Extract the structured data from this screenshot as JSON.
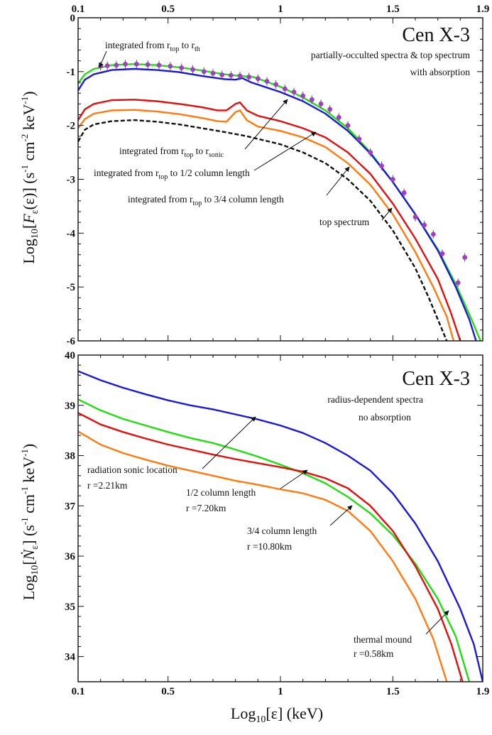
{
  "chart_data": [
    {
      "type": "line",
      "panel": "top",
      "title": "Cen X-3",
      "subtitle_lines": [
        "partially-occulted spectra & top spectrum",
        "with absorption"
      ],
      "xlabel": "",
      "ylabel": "Log10[Fε(ε)] (s-1 cm-2 keV-1)",
      "xlim": [
        0.1,
        1.9
      ],
      "ylim": [
        -6,
        0
      ],
      "top_x_ticks": [
        "0.1",
        "0.5",
        "1",
        "1.5",
        "1.9"
      ],
      "x_ticks": [
        0.1,
        0.5,
        1,
        1.5,
        1.9
      ],
      "y_ticks": [
        "0",
        "-1",
        "-2",
        "-3",
        "-4",
        "-5",
        "-6"
      ],
      "y_tick_values": [
        0,
        -1,
        -2,
        -3,
        -4,
        -5,
        -6
      ],
      "annotations": [
        {
          "text": "integrated from r",
          "sub1": "top",
          "mid": " to r",
          "sub2": "th"
        },
        {
          "text": "integrated from r",
          "sub1": "top",
          "mid": " to r",
          "sub2": "sonic"
        },
        {
          "text": "integrated from r",
          "sub1": "top",
          "mid": " to 1/2 column length",
          "sub2": ""
        },
        {
          "text": "integrated from r",
          "sub1": "top",
          "mid": " to 3/4 column length",
          "sub2": ""
        },
        {
          "text": "top spectrum",
          "sub1": "",
          "mid": "",
          "sub2": ""
        }
      ],
      "series": [
        {
          "color": "#22dd11",
          "style": "solid",
          "points": [
            [
              0.1,
              -1.22
            ],
            [
              0.13,
              -1.05
            ],
            [
              0.17,
              -0.95
            ],
            [
              0.25,
              -0.88
            ],
            [
              0.35,
              -0.86
            ],
            [
              0.45,
              -0.88
            ],
            [
              0.55,
              -0.92
            ],
            [
              0.65,
              -0.98
            ],
            [
              0.75,
              -1.05
            ],
            [
              0.82,
              -1.08
            ],
            [
              0.88,
              -1.1
            ],
            [
              1.0,
              -1.28
            ],
            [
              1.1,
              -1.48
            ],
            [
              1.2,
              -1.72
            ],
            [
              1.3,
              -2.05
            ],
            [
              1.4,
              -2.5
            ],
            [
              1.5,
              -3.05
            ],
            [
              1.6,
              -3.65
            ],
            [
              1.7,
              -4.3
            ],
            [
              1.78,
              -4.95
            ],
            [
              1.85,
              -5.6
            ],
            [
              1.89,
              -6.0
            ]
          ]
        },
        {
          "color": "#1a1ad6",
          "style": "solid",
          "points": [
            [
              0.1,
              -1.35
            ],
            [
              0.13,
              -1.15
            ],
            [
              0.17,
              -1.05
            ],
            [
              0.25,
              -0.97
            ],
            [
              0.35,
              -0.95
            ],
            [
              0.45,
              -0.97
            ],
            [
              0.55,
              -1.01
            ],
            [
              0.65,
              -1.08
            ],
            [
              0.75,
              -1.14
            ],
            [
              0.8,
              -1.15
            ],
            [
              0.83,
              -1.12
            ],
            [
              0.87,
              -1.2
            ],
            [
              1.0,
              -1.38
            ],
            [
              1.1,
              -1.55
            ],
            [
              1.2,
              -1.78
            ],
            [
              1.3,
              -2.1
            ],
            [
              1.4,
              -2.52
            ],
            [
              1.5,
              -3.05
            ],
            [
              1.6,
              -3.65
            ],
            [
              1.7,
              -4.32
            ],
            [
              1.78,
              -5.0
            ],
            [
              1.84,
              -5.6
            ],
            [
              1.87,
              -6.0
            ]
          ]
        },
        {
          "color": "#e01010",
          "style": "solid",
          "points": [
            [
              0.1,
              -1.9
            ],
            [
              0.13,
              -1.7
            ],
            [
              0.17,
              -1.6
            ],
            [
              0.25,
              -1.53
            ],
            [
              0.35,
              -1.52
            ],
            [
              0.45,
              -1.55
            ],
            [
              0.55,
              -1.6
            ],
            [
              0.65,
              -1.66
            ],
            [
              0.72,
              -1.72
            ],
            [
              0.76,
              -1.72
            ],
            [
              0.8,
              -1.6
            ],
            [
              0.82,
              -1.57
            ],
            [
              0.85,
              -1.72
            ],
            [
              0.9,
              -1.82
            ],
            [
              1.0,
              -1.92
            ],
            [
              1.1,
              -2.05
            ],
            [
              1.2,
              -2.22
            ],
            [
              1.3,
              -2.5
            ],
            [
              1.4,
              -2.9
            ],
            [
              1.5,
              -3.45
            ],
            [
              1.6,
              -4.1
            ],
            [
              1.7,
              -4.85
            ],
            [
              1.76,
              -5.5
            ],
            [
              1.8,
              -6.0
            ]
          ]
        },
        {
          "color": "#ff7a10",
          "style": "solid",
          "points": [
            [
              0.1,
              -2.05
            ],
            [
              0.13,
              -1.88
            ],
            [
              0.17,
              -1.78
            ],
            [
              0.25,
              -1.72
            ],
            [
              0.35,
              -1.71
            ],
            [
              0.45,
              -1.74
            ],
            [
              0.55,
              -1.79
            ],
            [
              0.65,
              -1.86
            ],
            [
              0.72,
              -1.92
            ],
            [
              0.76,
              -1.93
            ],
            [
              0.8,
              -1.75
            ],
            [
              0.82,
              -1.72
            ],
            [
              0.85,
              -1.9
            ],
            [
              0.9,
              -2.02
            ],
            [
              1.0,
              -2.1
            ],
            [
              1.1,
              -2.22
            ],
            [
              1.2,
              -2.4
            ],
            [
              1.3,
              -2.7
            ],
            [
              1.4,
              -3.1
            ],
            [
              1.5,
              -3.65
            ],
            [
              1.6,
              -4.35
            ],
            [
              1.68,
              -5.0
            ],
            [
              1.74,
              -5.55
            ],
            [
              1.77,
              -6.0
            ]
          ]
        },
        {
          "color": "#111111",
          "style": "dashed",
          "points": [
            [
              0.1,
              -2.3
            ],
            [
              0.13,
              -2.08
            ],
            [
              0.17,
              -1.98
            ],
            [
              0.25,
              -1.92
            ],
            [
              0.35,
              -1.9
            ],
            [
              0.45,
              -1.93
            ],
            [
              0.55,
              -1.98
            ],
            [
              0.65,
              -2.05
            ],
            [
              0.75,
              -2.12
            ],
            [
              0.85,
              -2.2
            ],
            [
              1.0,
              -2.35
            ],
            [
              1.1,
              -2.5
            ],
            [
              1.2,
              -2.7
            ],
            [
              1.3,
              -3.0
            ],
            [
              1.4,
              -3.4
            ],
            [
              1.5,
              -3.95
            ],
            [
              1.6,
              -4.65
            ],
            [
              1.66,
              -5.2
            ],
            [
              1.71,
              -5.7
            ],
            [
              1.74,
              -6.0
            ]
          ]
        }
      ],
      "data_points": {
        "color": "#a040c0",
        "points": [
          [
            0.2,
            -0.9
          ],
          [
            0.23,
            -0.89
          ],
          [
            0.27,
            -0.88
          ],
          [
            0.31,
            -0.86
          ],
          [
            0.36,
            -0.86
          ],
          [
            0.41,
            -0.87
          ],
          [
            0.46,
            -0.88
          ],
          [
            0.51,
            -0.9
          ],
          [
            0.56,
            -0.93
          ],
          [
            0.61,
            -0.96
          ],
          [
            0.66,
            -1.0
          ],
          [
            0.7,
            -1.03
          ],
          [
            0.74,
            -1.06
          ],
          [
            0.78,
            -1.07
          ],
          [
            0.82,
            -1.08
          ],
          [
            0.86,
            -1.1
          ],
          [
            0.9,
            -1.13
          ],
          [
            0.94,
            -1.18
          ],
          [
            0.98,
            -1.24
          ],
          [
            1.02,
            -1.32
          ],
          [
            1.06,
            -1.38
          ],
          [
            1.1,
            -1.45
          ],
          [
            1.14,
            -1.52
          ],
          [
            1.18,
            -1.6
          ],
          [
            1.22,
            -1.7
          ],
          [
            1.26,
            -1.85
          ],
          [
            1.3,
            -2.0
          ],
          [
            1.35,
            -2.25
          ],
          [
            1.4,
            -2.5
          ],
          [
            1.45,
            -2.75
          ],
          [
            1.5,
            -3.0
          ],
          [
            1.55,
            -3.25
          ],
          [
            1.6,
            -3.7
          ],
          [
            1.64,
            -3.85
          ],
          [
            1.68,
            -4.02
          ],
          [
            1.72,
            -4.38
          ],
          [
            1.79,
            -4.92
          ],
          [
            1.82,
            -4.45
          ]
        ]
      }
    },
    {
      "type": "line",
      "panel": "bottom",
      "title": "Cen X-3",
      "subtitle_lines": [
        "radius-dependent spectra",
        "no absorption"
      ],
      "xlabel": "Log10[ε] (keV)",
      "ylabel": "Log10[Ṅε] (s-1 cm-1 keV-1)",
      "xlim": [
        0.1,
        1.9
      ],
      "ylim": [
        33.5,
        40
      ],
      "x_ticks": [
        "0.1",
        "0.5",
        "1",
        "1.5",
        "1.9"
      ],
      "x_tick_values": [
        0.1,
        0.5,
        1,
        1.5,
        1.9
      ],
      "y_ticks": [
        "40",
        "39",
        "38",
        "37",
        "36",
        "35",
        "34"
      ],
      "y_tick_values": [
        40,
        39,
        38,
        37,
        36,
        35,
        34
      ],
      "annotations": [
        {
          "line1": "radiation sonic location",
          "line2": "r =2.21km"
        },
        {
          "line1": "1/2 column length",
          "line2": "r =7.20km"
        },
        {
          "line1": "3/4 column length",
          "line2": "r =10.80km"
        },
        {
          "line1": "thermal mound",
          "line2": "r =0.58km"
        }
      ],
      "series": [
        {
          "color": "#1a1ad6",
          "points": [
            [
              0.1,
              39.68
            ],
            [
              0.2,
              39.5
            ],
            [
              0.3,
              39.35
            ],
            [
              0.4,
              39.22
            ],
            [
              0.5,
              39.1
            ],
            [
              0.6,
              39.0
            ],
            [
              0.7,
              38.92
            ],
            [
              0.8,
              38.82
            ],
            [
              0.9,
              38.72
            ],
            [
              1.0,
              38.6
            ],
            [
              1.1,
              38.45
            ],
            [
              1.2,
              38.25
            ],
            [
              1.3,
              38.0
            ],
            [
              1.4,
              37.7
            ],
            [
              1.5,
              37.25
            ],
            [
              1.6,
              36.65
            ],
            [
              1.7,
              35.9
            ],
            [
              1.8,
              34.95
            ],
            [
              1.86,
              34.25
            ],
            [
              1.9,
              33.5
            ]
          ]
        },
        {
          "color": "#22dd11",
          "points": [
            [
              0.1,
              39.12
            ],
            [
              0.2,
              38.9
            ],
            [
              0.3,
              38.73
            ],
            [
              0.4,
              38.6
            ],
            [
              0.5,
              38.47
            ],
            [
              0.6,
              38.35
            ],
            [
              0.7,
              38.25
            ],
            [
              0.8,
              38.12
            ],
            [
              0.9,
              37.98
            ],
            [
              1.0,
              37.82
            ],
            [
              1.1,
              37.65
            ],
            [
              1.2,
              37.45
            ],
            [
              1.3,
              37.18
            ],
            [
              1.4,
              36.85
            ],
            [
              1.5,
              36.42
            ],
            [
              1.6,
              35.85
            ],
            [
              1.7,
              35.15
            ],
            [
              1.78,
              34.4
            ],
            [
              1.84,
              33.5
            ]
          ]
        },
        {
          "color": "#e01010",
          "points": [
            [
              0.1,
              38.85
            ],
            [
              0.2,
              38.62
            ],
            [
              0.3,
              38.47
            ],
            [
              0.4,
              38.34
            ],
            [
              0.5,
              38.22
            ],
            [
              0.6,
              38.12
            ],
            [
              0.7,
              38.02
            ],
            [
              0.8,
              37.93
            ],
            [
              0.9,
              37.85
            ],
            [
              1.0,
              37.77
            ],
            [
              1.1,
              37.68
            ],
            [
              1.2,
              37.55
            ],
            [
              1.3,
              37.35
            ],
            [
              1.4,
              37.0
            ],
            [
              1.5,
              36.5
            ],
            [
              1.6,
              35.8
            ],
            [
              1.7,
              34.95
            ],
            [
              1.76,
              34.25
            ],
            [
              1.81,
              33.5
            ]
          ]
        },
        {
          "color": "#ff7a10",
          "points": [
            [
              0.1,
              38.48
            ],
            [
              0.2,
              38.22
            ],
            [
              0.3,
              38.05
            ],
            [
              0.4,
              37.92
            ],
            [
              0.5,
              37.8
            ],
            [
              0.6,
              37.7
            ],
            [
              0.7,
              37.6
            ],
            [
              0.8,
              37.5
            ],
            [
              0.9,
              37.42
            ],
            [
              1.0,
              37.33
            ],
            [
              1.1,
              37.25
            ],
            [
              1.2,
              37.12
            ],
            [
              1.3,
              36.9
            ],
            [
              1.4,
              36.5
            ],
            [
              1.5,
              35.9
            ],
            [
              1.6,
              35.15
            ],
            [
              1.68,
              34.35
            ],
            [
              1.74,
              33.5
            ]
          ]
        }
      ]
    }
  ]
}
